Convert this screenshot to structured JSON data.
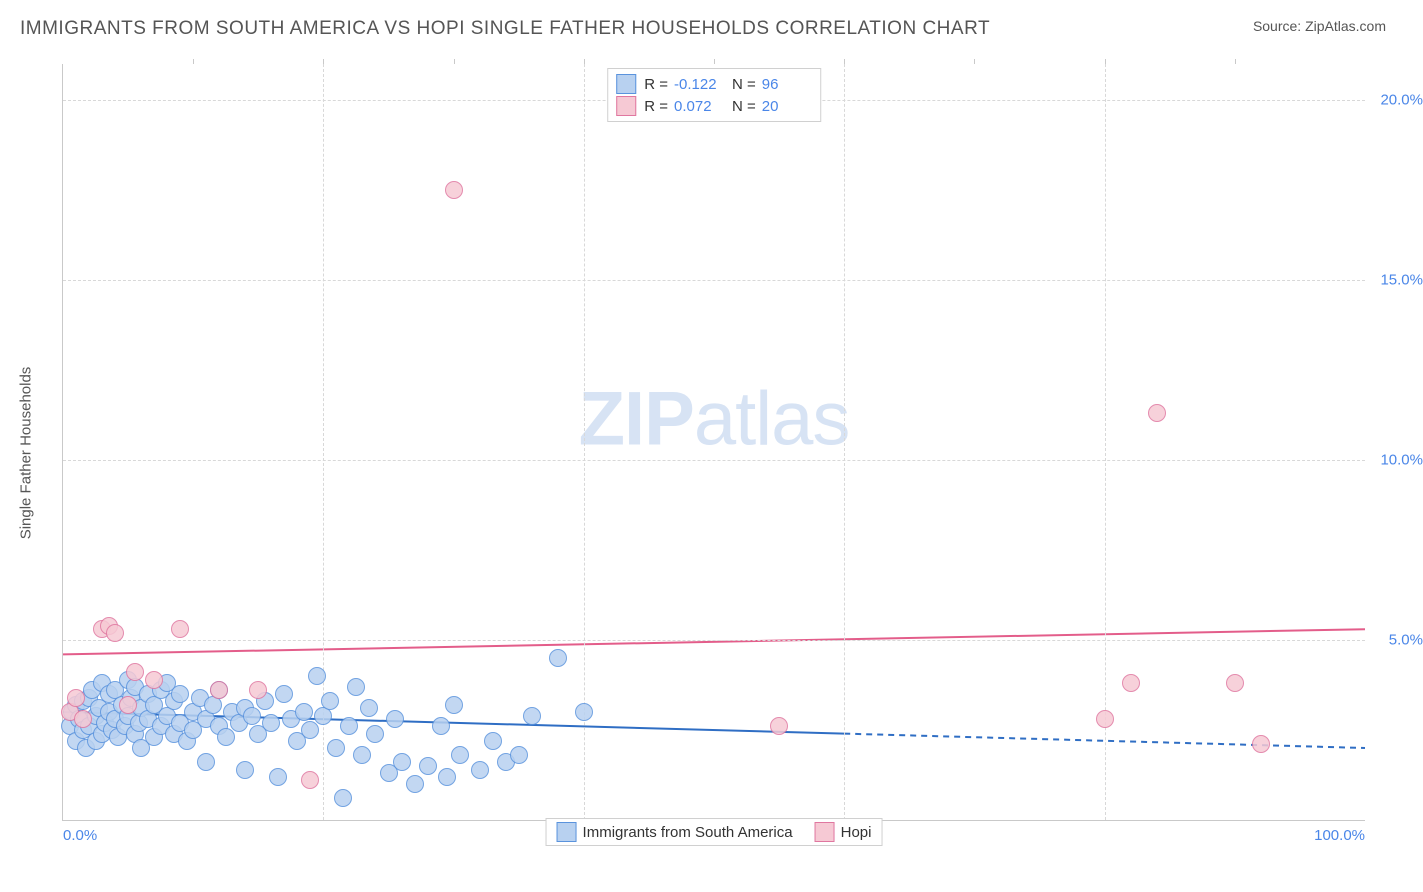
{
  "title": "IMMIGRANTS FROM SOUTH AMERICA VS HOPI SINGLE FATHER HOUSEHOLDS CORRELATION CHART",
  "source": "Source: ZipAtlas.com",
  "watermark_bold": "ZIP",
  "watermark_rest": "atlas",
  "chart": {
    "type": "scatter",
    "xlim": [
      0,
      100
    ],
    "ylim": [
      0,
      21
    ],
    "yticks": [
      5.0,
      10.0,
      15.0,
      20.0
    ],
    "xticks_corner": [
      0.0,
      100.0
    ],
    "xgrid": [
      20,
      40,
      60,
      80
    ],
    "top_ticks": [
      10,
      20,
      30,
      40,
      50,
      60,
      70,
      80,
      90
    ],
    "ylabel": "Single Father Households",
    "grid_color": "#d8d8d8",
    "axis_color": "#c9c9c9",
    "tick_label_color": "#4a86e8",
    "point_radius": 8,
    "point_border": 1,
    "series": [
      {
        "name": "Immigrants from South America",
        "fill": "#b8d1f0",
        "stroke": "#5a93dd",
        "R": "-0.122",
        "N": "96",
        "trend": {
          "x1": 0,
          "y1": 3.0,
          "x2": 60,
          "y2": 2.4,
          "x2_dash": 100,
          "y2_dash": 2.0,
          "color": "#2f6ec4",
          "width": 2
        },
        "points": [
          [
            0.5,
            2.6
          ],
          [
            0.7,
            3.0
          ],
          [
            1.0,
            2.2
          ],
          [
            1.0,
            3.2
          ],
          [
            1.2,
            2.8
          ],
          [
            1.5,
            2.5
          ],
          [
            1.5,
            3.3
          ],
          [
            1.8,
            2.0
          ],
          [
            2.0,
            3.4
          ],
          [
            2.0,
            2.6
          ],
          [
            2.2,
            3.6
          ],
          [
            2.5,
            2.9
          ],
          [
            2.5,
            2.2
          ],
          [
            2.8,
            3.1
          ],
          [
            3.0,
            3.8
          ],
          [
            3.0,
            2.4
          ],
          [
            3.2,
            2.7
          ],
          [
            3.5,
            3.0
          ],
          [
            3.5,
            3.5
          ],
          [
            3.8,
            2.5
          ],
          [
            4.0,
            3.6
          ],
          [
            4.0,
            2.8
          ],
          [
            4.2,
            2.3
          ],
          [
            4.5,
            3.2
          ],
          [
            4.8,
            2.6
          ],
          [
            5.0,
            3.9
          ],
          [
            5.0,
            2.9
          ],
          [
            5.2,
            3.4
          ],
          [
            5.5,
            2.4
          ],
          [
            5.5,
            3.7
          ],
          [
            5.8,
            2.7
          ],
          [
            6.0,
            3.1
          ],
          [
            6.0,
            2.0
          ],
          [
            6.5,
            3.5
          ],
          [
            6.5,
            2.8
          ],
          [
            7.0,
            3.2
          ],
          [
            7.0,
            2.3
          ],
          [
            7.5,
            3.6
          ],
          [
            7.5,
            2.6
          ],
          [
            8.0,
            2.9
          ],
          [
            8.0,
            3.8
          ],
          [
            8.5,
            2.4
          ],
          [
            8.5,
            3.3
          ],
          [
            9.0,
            2.7
          ],
          [
            9.0,
            3.5
          ],
          [
            9.5,
            2.2
          ],
          [
            10.0,
            3.0
          ],
          [
            10.0,
            2.5
          ],
          [
            10.5,
            3.4
          ],
          [
            11.0,
            2.8
          ],
          [
            11.0,
            1.6
          ],
          [
            11.5,
            3.2
          ],
          [
            12.0,
            2.6
          ],
          [
            12.0,
            3.6
          ],
          [
            12.5,
            2.3
          ],
          [
            13.0,
            3.0
          ],
          [
            13.5,
            2.7
          ],
          [
            14.0,
            1.4
          ],
          [
            14.0,
            3.1
          ],
          [
            14.5,
            2.9
          ],
          [
            15.0,
            2.4
          ],
          [
            15.5,
            3.3
          ],
          [
            16.0,
            2.7
          ],
          [
            16.5,
            1.2
          ],
          [
            17.0,
            3.5
          ],
          [
            17.5,
            2.8
          ],
          [
            18.0,
            2.2
          ],
          [
            18.5,
            3.0
          ],
          [
            19.0,
            2.5
          ],
          [
            19.5,
            4.0
          ],
          [
            20.0,
            2.9
          ],
          [
            20.5,
            3.3
          ],
          [
            21.0,
            2.0
          ],
          [
            21.5,
            0.6
          ],
          [
            22.0,
            2.6
          ],
          [
            22.5,
            3.7
          ],
          [
            23.0,
            1.8
          ],
          [
            23.5,
            3.1
          ],
          [
            24.0,
            2.4
          ],
          [
            25.0,
            1.3
          ],
          [
            25.5,
            2.8
          ],
          [
            26.0,
            1.6
          ],
          [
            27.0,
            1.0
          ],
          [
            28.0,
            1.5
          ],
          [
            29.0,
            2.6
          ],
          [
            29.5,
            1.2
          ],
          [
            30.0,
            3.2
          ],
          [
            30.5,
            1.8
          ],
          [
            32.0,
            1.4
          ],
          [
            33.0,
            2.2
          ],
          [
            34.0,
            1.6
          ],
          [
            35.0,
            1.8
          ],
          [
            36.0,
            2.9
          ],
          [
            38.0,
            4.5
          ],
          [
            40.0,
            3.0
          ]
        ]
      },
      {
        "name": "Hopi",
        "fill": "#f6c9d4",
        "stroke": "#e077a0",
        "R": "0.072",
        "N": "20",
        "trend": {
          "x1": 0,
          "y1": 4.6,
          "x2": 100,
          "y2": 5.3,
          "color": "#e35d8a",
          "width": 2
        },
        "points": [
          [
            0.5,
            3.0
          ],
          [
            1.0,
            3.4
          ],
          [
            1.5,
            2.8
          ],
          [
            3.0,
            5.3
          ],
          [
            3.5,
            5.4
          ],
          [
            4.0,
            5.2
          ],
          [
            5.0,
            3.2
          ],
          [
            5.5,
            4.1
          ],
          [
            7.0,
            3.9
          ],
          [
            9.0,
            5.3
          ],
          [
            12.0,
            3.6
          ],
          [
            15.0,
            3.6
          ],
          [
            19.0,
            1.1
          ],
          [
            30.0,
            17.5
          ],
          [
            55.0,
            2.6
          ],
          [
            80.0,
            2.8
          ],
          [
            82.0,
            3.8
          ],
          [
            84.0,
            11.3
          ],
          [
            90.0,
            3.8
          ],
          [
            92.0,
            2.1
          ]
        ]
      }
    ],
    "legend_top_labels": {
      "R": "R =",
      "N": "N ="
    },
    "legend_bottom": [
      "Immigrants from South America",
      "Hopi"
    ]
  }
}
